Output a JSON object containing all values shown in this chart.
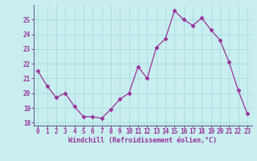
{
  "x": [
    0,
    1,
    2,
    3,
    4,
    5,
    6,
    7,
    8,
    9,
    10,
    11,
    12,
    13,
    14,
    15,
    16,
    17,
    18,
    19,
    20,
    21,
    22,
    23
  ],
  "y": [
    21.5,
    20.5,
    19.7,
    20.0,
    19.1,
    18.4,
    18.4,
    18.3,
    18.9,
    19.6,
    20.0,
    21.8,
    21.0,
    23.1,
    23.7,
    25.6,
    25.0,
    24.6,
    25.1,
    24.3,
    23.6,
    22.1,
    20.2,
    18.6
  ],
  "line_color": "#993399",
  "marker": "D",
  "marker_size": 2.5,
  "bg_color": "#c8eef0",
  "grid_color": "#aadddd",
  "xlabel": "Windchill (Refroidissement éolien,°C)",
  "ylim": [
    17.8,
    26.0
  ],
  "yticks": [
    18,
    19,
    20,
    21,
    22,
    23,
    24,
    25
  ],
  "xlim": [
    -0.5,
    23.5
  ],
  "xticks": [
    0,
    1,
    2,
    3,
    4,
    5,
    6,
    7,
    8,
    9,
    10,
    11,
    12,
    13,
    14,
    15,
    16,
    17,
    18,
    19,
    20,
    21,
    22,
    23
  ],
  "axis_color": "#993399",
  "tick_label_color": "#993399",
  "xlabel_color": "#993399",
  "spine_color": "#666699",
  "xlabel_fontsize": 6.0,
  "tick_fontsize": 5.5
}
